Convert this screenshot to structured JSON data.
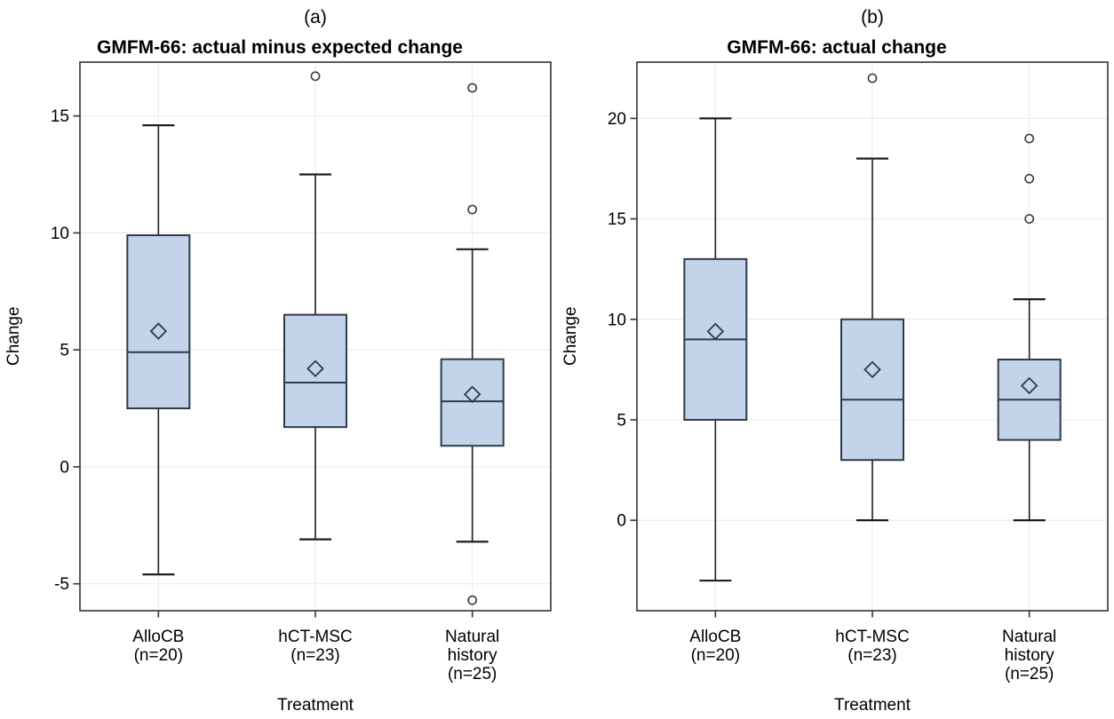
{
  "colors": {
    "box_fill": "#c3d4ea",
    "box_stroke": "#2e3b47",
    "line": "#1f1f1f",
    "grid": "#ececec",
    "frame": "#333333",
    "outlier_stroke": "#3a3a3a",
    "text": "#000000",
    "background": "#ffffff"
  },
  "chart_data": [
    {
      "type": "box",
      "panel_label": "(a)",
      "title": "GMFM-66: actual minus expected change",
      "xlabel": "Treatment",
      "ylabel": "Change",
      "ylim": [
        -6.15,
        17.3
      ],
      "yticks": [
        15,
        10,
        5,
        0,
        -5
      ],
      "grid": true,
      "legend": "none",
      "mean_marker": "open-diamond",
      "categories": [
        {
          "name": "AlloCB (n=20)",
          "lines": [
            "AlloCB",
            "(n=20)"
          ]
        },
        {
          "name": "hCT-MSC (n=23)",
          "lines": [
            "hCT-MSC",
            "(n=23)"
          ]
        },
        {
          "name": "Natural history (n=25)",
          "lines": [
            "Natural",
            "history",
            "(n=25)"
          ]
        }
      ],
      "series": [
        {
          "category": "AlloCB (n=20)",
          "whisker_low": -4.6,
          "q1": 2.5,
          "median": 4.9,
          "mean": 5.8,
          "q3": 9.9,
          "whisker_high": 14.6,
          "outliers": []
        },
        {
          "category": "hCT-MSC (n=23)",
          "whisker_low": -3.1,
          "q1": 1.7,
          "median": 3.6,
          "mean": 4.2,
          "q3": 6.5,
          "whisker_high": 12.5,
          "outliers": [
            16.7
          ]
        },
        {
          "category": "Natural history (n=25)",
          "whisker_low": -3.2,
          "q1": 0.9,
          "median": 2.8,
          "mean": 3.1,
          "q3": 4.6,
          "whisker_high": 9.3,
          "outliers": [
            16.2,
            11.0,
            -5.7
          ]
        }
      ]
    },
    {
      "type": "box",
      "panel_label": "(b)",
      "title": "GMFM-66: actual change",
      "xlabel": "Treatment",
      "ylabel": "Change",
      "ylim": [
        -4.5,
        22.8
      ],
      "yticks": [
        20,
        15,
        10,
        5,
        0
      ],
      "grid": true,
      "legend": "none",
      "mean_marker": "open-diamond",
      "categories": [
        {
          "name": "AlloCB (n=20)",
          "lines": [
            "AlloCB",
            "(n=20)"
          ]
        },
        {
          "name": "hCT-MSC (n=23)",
          "lines": [
            "hCT-MSC",
            "(n=23)"
          ]
        },
        {
          "name": "Natural history (n=25)",
          "lines": [
            "Natural",
            "history",
            "(n=25)"
          ]
        }
      ],
      "series": [
        {
          "category": "AlloCB (n=20)",
          "whisker_low": -3.0,
          "q1": 5.0,
          "median": 9.0,
          "mean": 9.4,
          "q3": 13.0,
          "whisker_high": 20.0,
          "outliers": []
        },
        {
          "category": "hCT-MSC (n=23)",
          "whisker_low": 0.0,
          "q1": 3.0,
          "median": 6.0,
          "mean": 7.5,
          "q3": 10.0,
          "whisker_high": 18.0,
          "outliers": [
            22.0
          ]
        },
        {
          "category": "Natural history (n=25)",
          "whisker_low": 0.0,
          "q1": 4.0,
          "median": 6.0,
          "mean": 6.7,
          "q3": 8.0,
          "whisker_high": 11.0,
          "outliers": [
            15.0,
            17.0,
            19.0
          ]
        }
      ]
    }
  ]
}
